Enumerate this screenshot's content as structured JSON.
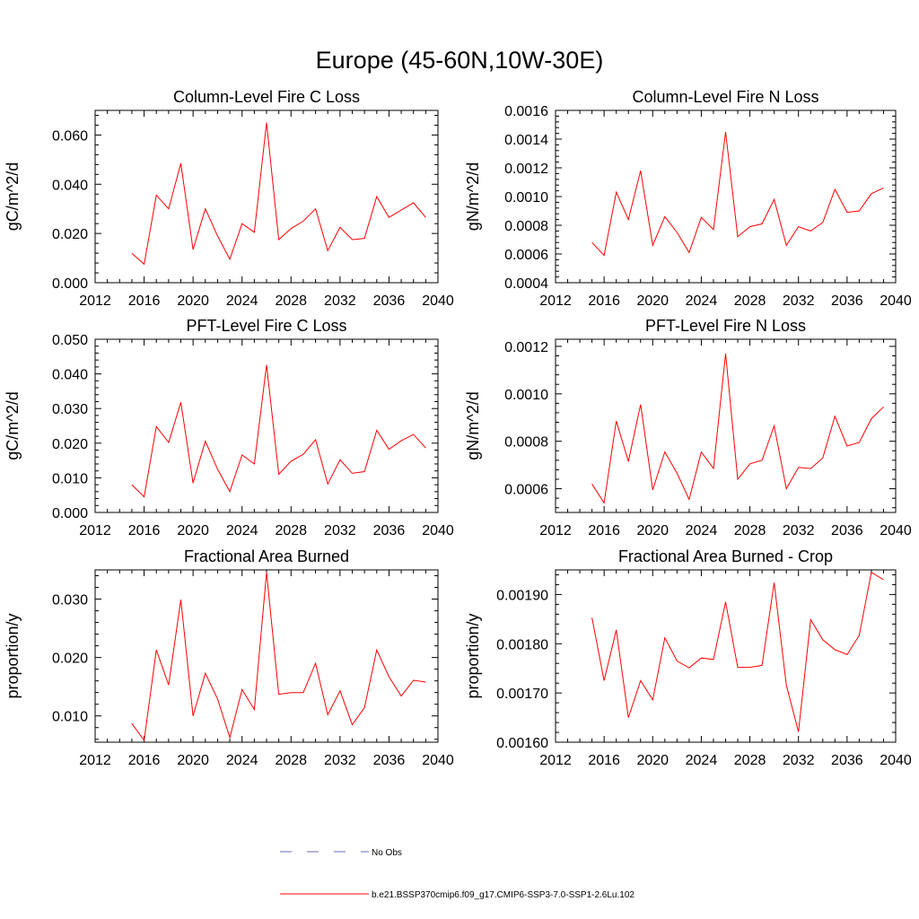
{
  "page": {
    "title": "Europe (45-60N,10W-30E)"
  },
  "legend": {
    "entries": [
      {
        "label": "No Obs",
        "color": "#6a6ab8",
        "style": "dashed"
      },
      {
        "label": "b.e21.BSSP370cmip6.f09_g17.CMIP6-SSP3-7.0-SSP1-2.6Lu.102",
        "color": "#ff0000",
        "style": "solid"
      }
    ]
  },
  "chart_data": [
    {
      "type": "line",
      "title": "Column-Level Fire C Loss",
      "ylabel": "gC/m^2/d",
      "xlim": [
        2012,
        2040
      ],
      "ylim": [
        0.0,
        0.07
      ],
      "xticks": [
        2012,
        2016,
        2020,
        2024,
        2028,
        2032,
        2036,
        2040
      ],
      "yticks": [
        0.0,
        0.02,
        0.04,
        0.06
      ],
      "yticklabels": [
        "0.000",
        "0.020",
        "0.040",
        "0.060"
      ],
      "x": [
        2015,
        2016,
        2017,
        2018,
        2019,
        2020,
        2021,
        2022,
        2023,
        2024,
        2025,
        2026,
        2027,
        2028,
        2029,
        2030,
        2031,
        2032,
        2033,
        2034,
        2035,
        2036,
        2037,
        2038,
        2039
      ],
      "series": [
        {
          "color": "#ff0000",
          "values": [
            0.012,
            0.0075,
            0.0355,
            0.03,
            0.0485,
            0.0135,
            0.03,
            0.019,
            0.0095,
            0.024,
            0.0205,
            0.065,
            0.0175,
            0.022,
            0.025,
            0.03,
            0.013,
            0.0225,
            0.0175,
            0.018,
            0.035,
            0.0265,
            0.0295,
            0.0325,
            0.0265
          ]
        }
      ]
    },
    {
      "type": "line",
      "title": "Column-Level Fire N Loss",
      "ylabel": "gN/m^2/d",
      "xlim": [
        2012,
        2040
      ],
      "ylim": [
        0.0004,
        0.0016
      ],
      "xticks": [
        2012,
        2016,
        2020,
        2024,
        2028,
        2032,
        2036,
        2040
      ],
      "yticks": [
        0.0004,
        0.0006,
        0.0008,
        0.001,
        0.0012,
        0.0014,
        0.0016
      ],
      "yticklabels": [
        "0.0004",
        "0.0006",
        "0.0008",
        "0.0010",
        "0.0012",
        "0.0014",
        "0.0016"
      ],
      "x": [
        2015,
        2016,
        2017,
        2018,
        2019,
        2020,
        2021,
        2022,
        2023,
        2024,
        2025,
        2026,
        2027,
        2028,
        2029,
        2030,
        2031,
        2032,
        2033,
        2034,
        2035,
        2036,
        2037,
        2038,
        2039
      ],
      "series": [
        {
          "color": "#ff0000",
          "values": [
            0.00068,
            0.00059,
            0.00103,
            0.00084,
            0.00118,
            0.00066,
            0.00086,
            0.00075,
            0.00061,
            0.000855,
            0.00077,
            0.00145,
            0.00072,
            0.00079,
            0.00081,
            0.00098,
            0.00066,
            0.00079,
            0.00076,
            0.00082,
            0.00105,
            0.00089,
            0.0009,
            0.00102,
            0.00106
          ]
        }
      ]
    },
    {
      "type": "line",
      "title": "PFT-Level Fire C Loss",
      "ylabel": "gC/m^2/d",
      "xlim": [
        2012,
        2040
      ],
      "ylim": [
        0.0,
        0.05
      ],
      "xticks": [
        2012,
        2016,
        2020,
        2024,
        2028,
        2032,
        2036,
        2040
      ],
      "yticks": [
        0.0,
        0.01,
        0.02,
        0.03,
        0.04,
        0.05
      ],
      "yticklabels": [
        "0.000",
        "0.010",
        "0.020",
        "0.030",
        "0.040",
        "0.050"
      ],
      "x": [
        2015,
        2016,
        2017,
        2018,
        2019,
        2020,
        2021,
        2022,
        2023,
        2024,
        2025,
        2026,
        2027,
        2028,
        2029,
        2030,
        2031,
        2032,
        2033,
        2034,
        2035,
        2036,
        2037,
        2038,
        2039
      ],
      "series": [
        {
          "color": "#ff0000",
          "values": [
            0.008,
            0.0045,
            0.0248,
            0.0202,
            0.0318,
            0.0085,
            0.0206,
            0.0125,
            0.006,
            0.0166,
            0.014,
            0.0426,
            0.011,
            0.0148,
            0.0168,
            0.021,
            0.0082,
            0.0152,
            0.0113,
            0.0118,
            0.0237,
            0.0182,
            0.0207,
            0.0225,
            0.0186
          ]
        }
      ]
    },
    {
      "type": "line",
      "title": "PFT-Level Fire N Loss",
      "ylabel": "gN/m^2/d",
      "xlim": [
        2012,
        2040
      ],
      "ylim": [
        0.0005,
        0.00123
      ],
      "xticks": [
        2012,
        2016,
        2020,
        2024,
        2028,
        2032,
        2036,
        2040
      ],
      "yticks": [
        0.0006,
        0.0008,
        0.001,
        0.0012
      ],
      "yticklabels": [
        "0.0006",
        "0.0008",
        "0.0010",
        "0.0012"
      ],
      "x": [
        2015,
        2016,
        2017,
        2018,
        2019,
        2020,
        2021,
        2022,
        2023,
        2024,
        2025,
        2026,
        2027,
        2028,
        2029,
        2030,
        2031,
        2032,
        2033,
        2034,
        2035,
        2036,
        2037,
        2038,
        2039
      ],
      "series": [
        {
          "color": "#ff0000",
          "values": [
            0.00062,
            0.00054,
            0.000885,
            0.000715,
            0.000955,
            0.000595,
            0.000755,
            0.000665,
            0.000555,
            0.000755,
            0.000685,
            0.00117,
            0.00064,
            0.000705,
            0.00072,
            0.000865,
            0.0006,
            0.00069,
            0.000685,
            0.00073,
            0.000905,
            0.00078,
            0.000795,
            0.000895,
            0.000945
          ]
        }
      ]
    },
    {
      "type": "line",
      "title": "Fractional Area Burned",
      "ylabel": "proportion/y",
      "xlim": [
        2012,
        2040
      ],
      "ylim": [
        0.0055,
        0.035
      ],
      "xticks": [
        2012,
        2016,
        2020,
        2024,
        2028,
        2032,
        2036,
        2040
      ],
      "yticks": [
        0.01,
        0.02,
        0.03
      ],
      "yticklabels": [
        "0.010",
        "0.020",
        "0.030"
      ],
      "x": [
        2015,
        2016,
        2017,
        2018,
        2019,
        2020,
        2021,
        2022,
        2023,
        2024,
        2025,
        2026,
        2027,
        2028,
        2029,
        2030,
        2031,
        2032,
        2033,
        2034,
        2035,
        2036,
        2037,
        2038,
        2039
      ],
      "series": [
        {
          "color": "#ff0000",
          "values": [
            0.0087,
            0.0058,
            0.0213,
            0.0153,
            0.0299,
            0.01,
            0.0173,
            0.0129,
            0.0063,
            0.0145,
            0.0111,
            0.0346,
            0.0137,
            0.014,
            0.014,
            0.019,
            0.0102,
            0.0143,
            0.0085,
            0.0114,
            0.0213,
            0.0167,
            0.0134,
            0.0161,
            0.0158
          ]
        }
      ]
    },
    {
      "type": "line",
      "title": "Fractional Area Burned - Crop",
      "ylabel": "proportion/y",
      "xlim": [
        2012,
        2040
      ],
      "ylim": [
        0.0016,
        0.00195
      ],
      "xticks": [
        2012,
        2016,
        2020,
        2024,
        2028,
        2032,
        2036,
        2040
      ],
      "yticks": [
        0.0016,
        0.0017,
        0.0018,
        0.0019
      ],
      "yticklabels": [
        "0.00160",
        "0.00170",
        "0.00180",
        "0.00190"
      ],
      "x": [
        2015,
        2016,
        2017,
        2018,
        2019,
        2020,
        2021,
        2022,
        2023,
        2024,
        2025,
        2026,
        2027,
        2028,
        2029,
        2030,
        2031,
        2032,
        2033,
        2034,
        2035,
        2036,
        2037,
        2038,
        2039
      ],
      "series": [
        {
          "color": "#ff0000",
          "values": [
            0.001853,
            0.001725,
            0.001828,
            0.00165,
            0.001725,
            0.001686,
            0.001812,
            0.001765,
            0.001751,
            0.001771,
            0.001768,
            0.001885,
            0.001752,
            0.001752,
            0.001756,
            0.001924,
            0.001716,
            0.001621,
            0.001849,
            0.001808,
            0.001788,
            0.001778,
            0.001817,
            0.001945,
            0.00193
          ]
        }
      ]
    }
  ]
}
